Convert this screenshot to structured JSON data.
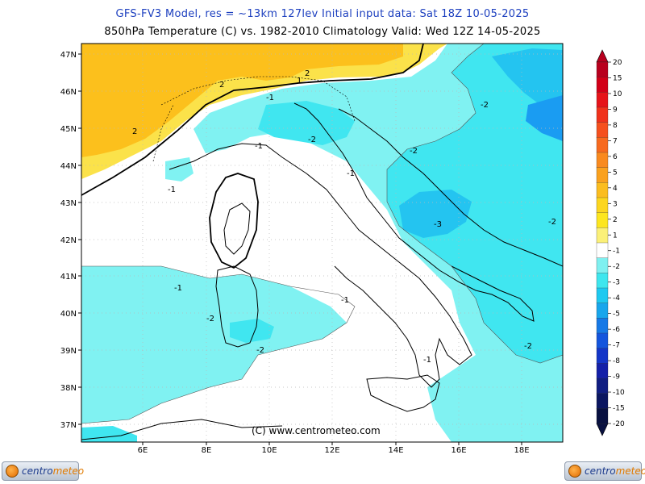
{
  "title": {
    "model_line": "GFS-FV3 Model, res = ~13km 127lev    Initial input data: Sat 18Z 10-05-2025",
    "product_line": "850hPa Temperature (C) vs. 1982-2010 Climatology  Valid: Wed 12Z 14-05-2025"
  },
  "axes": {
    "lat_labels": [
      "47N",
      "46N",
      "45N",
      "44N",
      "43N",
      "42N",
      "41N",
      "40N",
      "39N",
      "38N",
      "37N"
    ],
    "lon_labels": [
      "6E",
      "8E",
      "10E",
      "12E",
      "14E",
      "16E",
      "18E"
    ]
  },
  "colorbar": {
    "labels": [
      "20",
      "15",
      "10",
      "9",
      "8",
      "7",
      "6",
      "5",
      "4",
      "3",
      "2",
      "1",
      "-1",
      "-2",
      "-3",
      "-4",
      "-5",
      "-6",
      "-7",
      "-8",
      "-9",
      "-10",
      "-15",
      "-20"
    ],
    "colors": [
      "#b8001e",
      "#d20018",
      "#e6141a",
      "#f0321c",
      "#f5501e",
      "#f76a1f",
      "#f98a1f",
      "#faa11e",
      "#fbbd1f",
      "#fcd61f",
      "#fde61f",
      "#fbf078",
      "#ffffff",
      "#7ff0f0",
      "#3ee6ee",
      "#1ec9f0",
      "#18a6ec",
      "#1679e6",
      "#1455dd",
      "#1436c8",
      "#1420a8",
      "#101e82",
      "#0b1660",
      "#081040"
    ]
  },
  "contour_labels": [
    "2",
    "2",
    "2",
    "1",
    "-1",
    "-1",
    "-1",
    "-1",
    "-1",
    "-1",
    "-1",
    "-2",
    "-2",
    "-2",
    "-2",
    "-2",
    "-2",
    "-2",
    "-3"
  ],
  "credit": "(C) www.centrometeo.com",
  "logos": {
    "left": {
      "prefix": "centro",
      "suffix": "meteo"
    },
    "right": {
      "prefix": "centro",
      "suffix": "meteo"
    }
  },
  "fills": {
    "warm_plus2": "#fcc01c",
    "warm_plus1": "#fbe24a",
    "neutral": "#ffffff",
    "cool_minus1": "#80f2f2",
    "cool_minus2": "#40e6f0",
    "cool_minus3": "#24c4f0",
    "cool_minus4": "#1a9cf2"
  }
}
